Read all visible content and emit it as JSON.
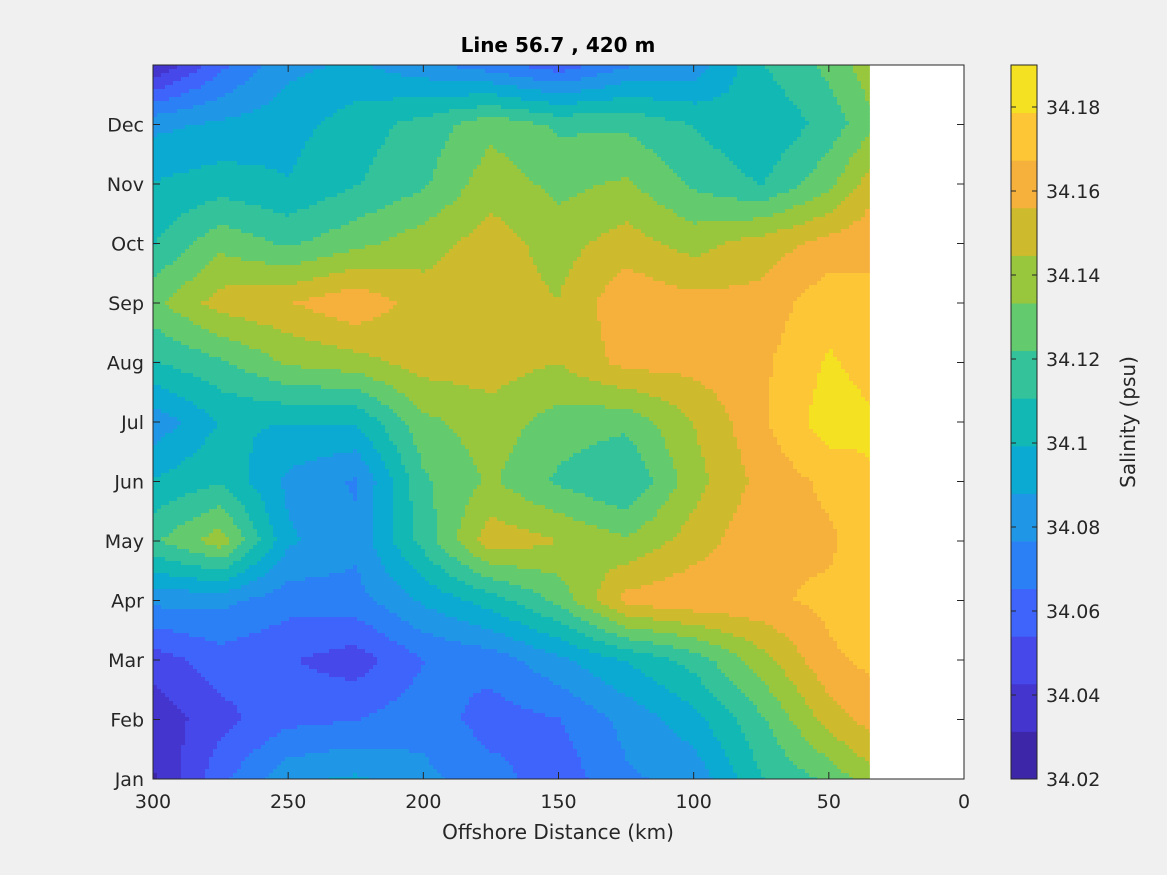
{
  "chart_data": {
    "type": "contourf",
    "title": "Line 56.7 , 420 m",
    "xlabel": "Offshore Distance (km)",
    "ylabel": "",
    "x_axis_reversed": true,
    "xlim": [
      0,
      300
    ],
    "xticks": [
      "300",
      "250",
      "200",
      "150",
      "100",
      "50",
      "0"
    ],
    "yticks": [
      "Jan",
      "Feb",
      "Mar",
      "Apr",
      "May",
      "Jun",
      "Jul",
      "Aug",
      "Sep",
      "Oct",
      "Nov",
      "Dec"
    ],
    "data_extent_km": [
      35,
      300
    ],
    "colorbar": {
      "label": "Salinity (psu)",
      "range": [
        34.02,
        34.19
      ],
      "ticks": [
        "34.02",
        "34.04",
        "34.06",
        "34.08",
        "34.1",
        "34.12",
        "34.14",
        "34.16",
        "34.18"
      ],
      "colors": [
        "#3e26a8",
        "#4435cf",
        "#4748ea",
        "#3f64fc",
        "#2c80f6",
        "#1f97e6",
        "#0aaad2",
        "#12b8b4",
        "#33c29a",
        "#63ca6e",
        "#98c73e",
        "#cdbb2d",
        "#f6b13c",
        "#fcc637",
        "#f4e122"
      ]
    },
    "months": [
      "Jan",
      "Feb",
      "Mar",
      "Apr",
      "May",
      "Jun",
      "Jul",
      "Aug",
      "Sep",
      "Oct",
      "Nov",
      "Dec"
    ],
    "distance_km": [
      300,
      275,
      250,
      225,
      200,
      175,
      150,
      125,
      100,
      75,
      50,
      35
    ],
    "salinity": [
      [
        34.03,
        34.062,
        34.085,
        34.09,
        34.08,
        34.07,
        34.058,
        34.075,
        34.08,
        34.11,
        34.125,
        34.14
      ],
      [
        34.035,
        34.05,
        34.062,
        34.065,
        34.072,
        34.06,
        34.065,
        34.08,
        34.095,
        34.12,
        34.15,
        34.16
      ],
      [
        34.048,
        34.06,
        34.055,
        34.048,
        34.065,
        34.07,
        34.085,
        34.1,
        34.115,
        34.14,
        34.165,
        34.17
      ],
      [
        34.08,
        34.08,
        34.07,
        34.072,
        34.09,
        34.105,
        34.125,
        34.16,
        34.165,
        34.165,
        34.17,
        34.175
      ],
      [
        34.12,
        34.14,
        34.09,
        34.08,
        34.115,
        34.152,
        34.145,
        34.135,
        34.15,
        34.165,
        34.165,
        34.175
      ],
      [
        34.1,
        34.11,
        34.085,
        34.075,
        34.12,
        34.135,
        34.12,
        34.11,
        34.14,
        34.16,
        34.17,
        34.178
      ],
      [
        34.08,
        34.1,
        34.1,
        34.1,
        34.13,
        34.14,
        34.128,
        34.125,
        34.145,
        34.165,
        34.185,
        34.18
      ],
      [
        34.11,
        34.12,
        34.135,
        34.14,
        34.15,
        34.15,
        34.145,
        34.16,
        34.16,
        34.165,
        34.18,
        34.175
      ],
      [
        34.13,
        34.15,
        34.155,
        34.165,
        34.15,
        34.15,
        34.145,
        34.165,
        34.16,
        34.16,
        34.175,
        34.17
      ],
      [
        34.11,
        34.13,
        34.12,
        34.13,
        34.14,
        34.15,
        34.14,
        34.15,
        34.14,
        34.15,
        34.16,
        34.165
      ],
      [
        34.1,
        34.105,
        34.1,
        34.11,
        34.12,
        34.14,
        34.13,
        34.135,
        34.12,
        34.11,
        34.13,
        34.15
      ],
      [
        34.085,
        34.09,
        34.095,
        34.105,
        34.115,
        34.13,
        34.12,
        34.12,
        34.11,
        34.1,
        34.115,
        34.13
      ]
    ]
  }
}
